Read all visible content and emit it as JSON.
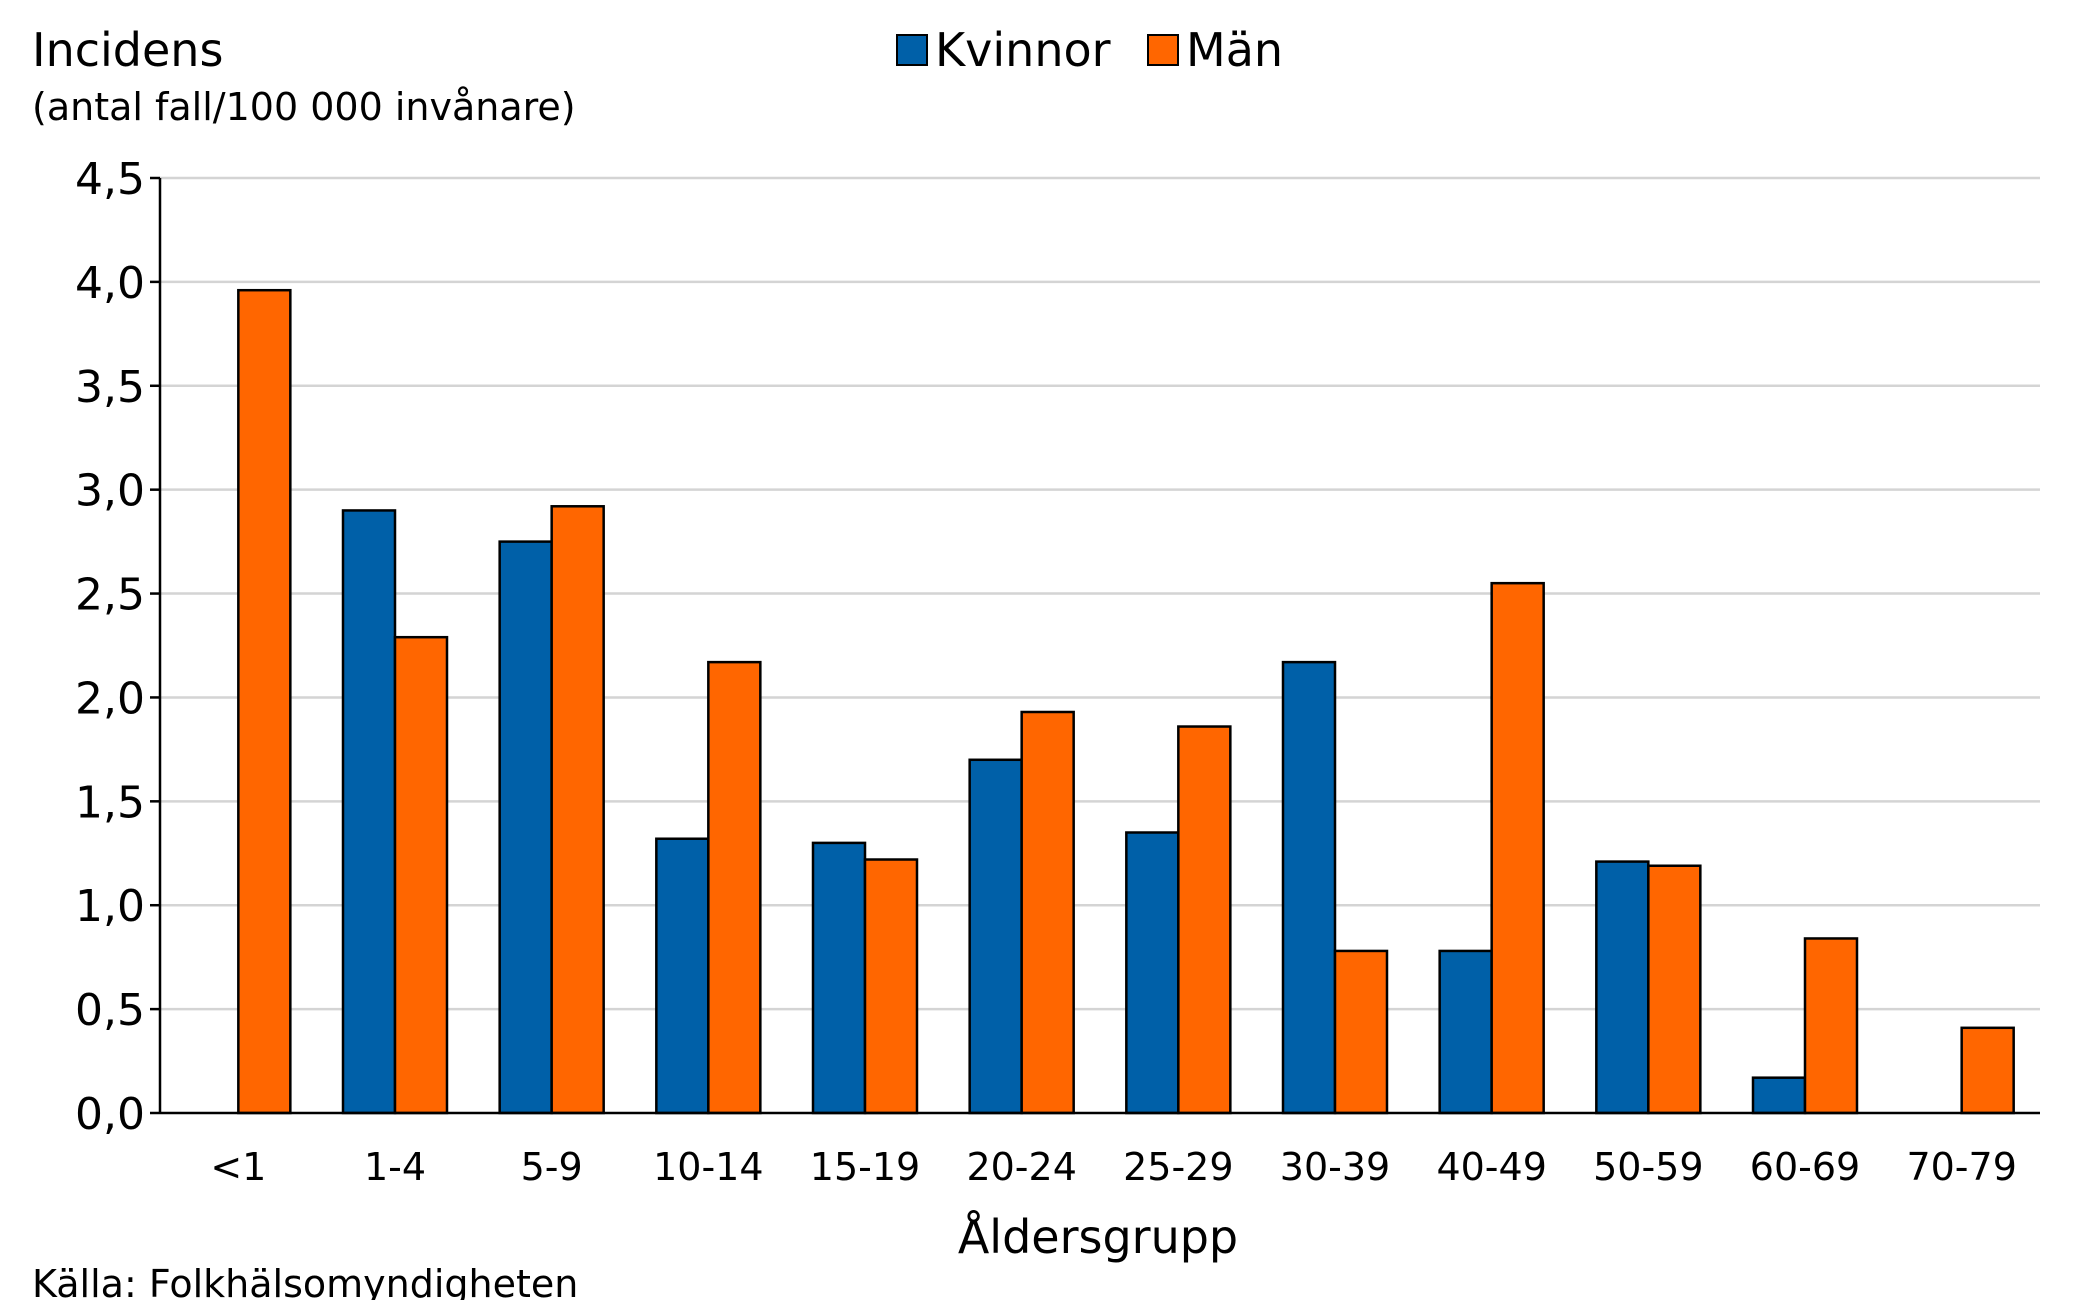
{
  "chart_data": {
    "type": "bar",
    "ylabel": "Incidens",
    "yunit": "(antal fall/100 000 invånare)",
    "xlabel": "Åldersgrupp",
    "source": "Källa: Folkhälsomyndigheten",
    "ylim": [
      0,
      4.5
    ],
    "ytick_step": 0.5,
    "ytick_labels": [
      "0,0",
      "0,5",
      "1,0",
      "1,5",
      "2,0",
      "2,5",
      "3,0",
      "3,5",
      "4,0",
      "4,5"
    ],
    "grid": true,
    "legend_position": "top-center",
    "categories": [
      "<1",
      "1-4",
      "5-9",
      "10-14",
      "15-19",
      "20-24",
      "25-29",
      "30-39",
      "40-49",
      "50-59",
      "60-69",
      "70-79"
    ],
    "series": [
      {
        "name": "Kvinnor",
        "color": "#0060a8",
        "values": [
          0,
          2.9,
          2.75,
          1.32,
          1.3,
          1.7,
          1.35,
          2.17,
          0.78,
          1.21,
          0.17,
          0
        ]
      },
      {
        "name": "Män",
        "color": "#ff6600",
        "values": [
          3.96,
          2.29,
          2.92,
          2.17,
          1.22,
          1.93,
          1.86,
          0.78,
          2.55,
          1.19,
          0.84,
          0.41
        ]
      }
    ]
  }
}
